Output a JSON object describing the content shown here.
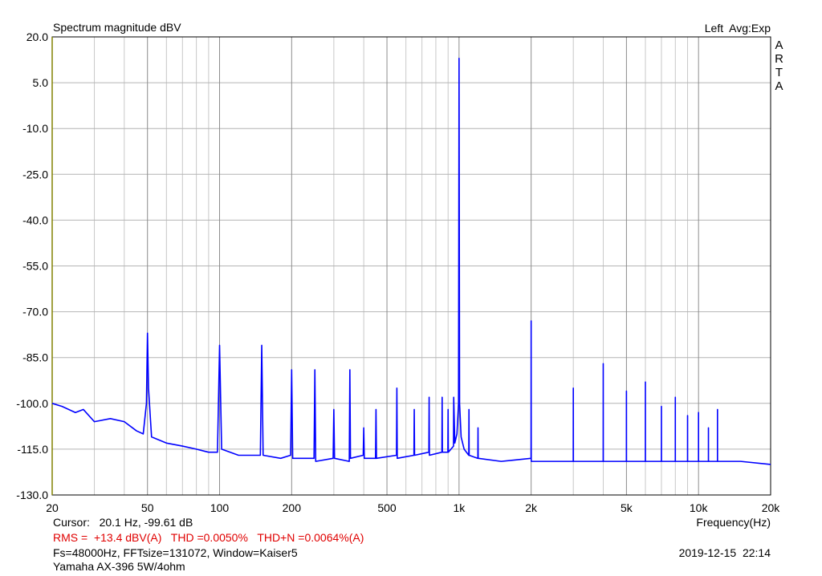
{
  "chart_data": {
    "type": "line",
    "title": "Spectrum magnitude dBV",
    "status": "Left  Avg:Exp",
    "logo": "ARTA",
    "x_label": "Frequency(Hz)",
    "cursor": "Cursor:   20.1 Hz, -99.61 dB",
    "measurement": "RMS =  +13.4 dBV(A)   THD =0.0050%   THD+N =0.0064%(A)",
    "settings": "Fs=48000Hz, FFTsize=131072, Window=Kaiser5",
    "timestamp": "2019-12-15  22:14",
    "device": "Yamaha AX-396 5W/4ohm",
    "xscale": "log",
    "grid": true,
    "xlim": [
      20,
      20000
    ],
    "ylim": [
      -130,
      20
    ],
    "xticks": [
      20,
      50,
      100,
      200,
      500,
      {
        "value": 1000,
        "label": "1k"
      },
      {
        "value": 2000,
        "label": "2k"
      },
      {
        "value": 5000,
        "label": "5k"
      },
      {
        "value": 10000,
        "label": "10k"
      },
      {
        "value": 20000,
        "label": "20k"
      }
    ],
    "xminorticks": [
      30,
      40,
      60,
      70,
      80,
      90,
      300,
      400,
      600,
      700,
      800,
      900,
      3000,
      4000,
      6000,
      7000,
      8000,
      9000
    ],
    "yticks": [
      {
        "value": 20,
        "label": "20.0"
      },
      {
        "value": 5,
        "label": "5.0"
      },
      {
        "value": -10,
        "label": "-10.0"
      },
      {
        "value": -25,
        "label": "-25.0"
      },
      {
        "value": -40,
        "label": "-40.0"
      },
      {
        "value": -55,
        "label": "-55.0"
      },
      {
        "value": -70,
        "label": "-70.0"
      },
      {
        "value": -85,
        "label": "-85.0"
      },
      {
        "value": -100,
        "label": "-100.0"
      },
      {
        "value": -115,
        "label": "-115.0"
      },
      {
        "value": -130,
        "label": "-130.0"
      }
    ],
    "series": [
      {
        "color": "#0000ff",
        "x": [
          20,
          22,
          25,
          27,
          30,
          35,
          40,
          45,
          48,
          49.5,
          50,
          50.5,
          52,
          60,
          70,
          80,
          90,
          98,
          100,
          102,
          120,
          148,
          150,
          152,
          180,
          198,
          200,
          202,
          248,
          250,
          252,
          298,
          300,
          302,
          348,
          350,
          352,
          398,
          400,
          402,
          448,
          450,
          452,
          548,
          550,
          552,
          648,
          650,
          652,
          748,
          750,
          752,
          848,
          850,
          852,
          898,
          900,
          902,
          948,
          950,
          960,
          980,
          995,
          1000,
          1005,
          1020,
          1050,
          1098,
          1100,
          1102,
          1198,
          1200,
          1202,
          1500,
          1998,
          2000,
          2002,
          2998,
          3000,
          3002,
          3998,
          4000,
          4002,
          4998,
          5000,
          5002,
          5998,
          6000,
          6002,
          6998,
          7000,
          7002,
          7998,
          8000,
          8002,
          8998,
          9000,
          9002,
          9998,
          10000,
          10002,
          10998,
          11000,
          11002,
          11998,
          12000,
          12002,
          15000,
          20000
        ],
        "values": [
          -100,
          -101,
          -103,
          -102,
          -106,
          -105,
          -106,
          -109,
          -110,
          -100,
          -77,
          -95,
          -111,
          -113,
          -114,
          -115,
          -116,
          -116,
          -81,
          -115,
          -117,
          -117,
          -81,
          -117,
          -118,
          -117,
          -89,
          -118,
          -118,
          -89,
          -119,
          -118,
          -102,
          -118,
          -119,
          -89,
          -118,
          -117,
          -108,
          -118,
          -118,
          -102,
          -118,
          -117,
          -95,
          -118,
          -117,
          -102,
          -117,
          -116,
          -98,
          -117,
          -116,
          -98,
          -116,
          -116,
          -102,
          -116,
          -114,
          -98,
          -113,
          -110,
          -100,
          13,
          -100,
          -111,
          -115,
          -117,
          -102,
          -117,
          -118,
          -108,
          -118,
          -119,
          -118,
          -73,
          -119,
          -119,
          -95,
          -119,
          -119,
          -87,
          -119,
          -119,
          -96,
          -119,
          -119,
          -93,
          -119,
          -119,
          -101,
          -119,
          -119,
          -98,
          -119,
          -119,
          -104,
          -119,
          -119,
          -103,
          -119,
          -119,
          -108,
          -119,
          -119,
          -102,
          -119,
          -119,
          -120
        ]
      }
    ]
  }
}
